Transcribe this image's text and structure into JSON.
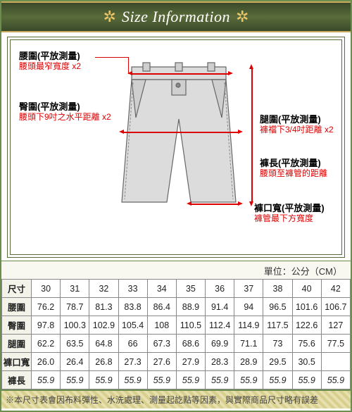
{
  "header": {
    "title": "Size Information"
  },
  "labels": {
    "waist_t": "腰圍(平放測量)",
    "waist_s": "腰頭最窄寬度 x2",
    "hip_t": "臀圍(平放測量)",
    "hip_s": "腰頭下9吋之水平距離 x2",
    "thigh_t": "腿圍(平放測量)",
    "thigh_s": "褲襠下3/4吋距離 x2",
    "length_t": "褲長(平放測量)",
    "length_s": "腰頭至褲管的距離",
    "hem_t": "褲口寬(平放測量)",
    "hem_s": "褲管最下方寬度"
  },
  "unit": "單位：公分（CM）",
  "table": {
    "row_headers": [
      "尺寸",
      "腰圍",
      "臀圍",
      "腿圍",
      "褲口寬",
      "褲長"
    ],
    "columns": [
      "30",
      "31",
      "32",
      "33",
      "34",
      "35",
      "36",
      "37",
      "38",
      "40",
      "42"
    ],
    "rows": [
      [
        "76.2",
        "78.7",
        "81.3",
        "83.8",
        "86.4",
        "88.9",
        "91.4",
        "94",
        "96.5",
        "101.6",
        "106.7"
      ],
      [
        "97.8",
        "100.3",
        "102.9",
        "105.4",
        "108",
        "110.5",
        "112.4",
        "114.9",
        "117.5",
        "122.6",
        "127"
      ],
      [
        "62.2",
        "63.5",
        "64.8",
        "66",
        "67.3",
        "68.6",
        "69.9",
        "71.1",
        "73",
        "75.6",
        "77.5"
      ],
      [
        "26.0",
        "26.4",
        "26.8",
        "27.3",
        "27.6",
        "27.9",
        "28.3",
        "28.9",
        "29.5",
        "30.5",
        ""
      ],
      [
        "55.9",
        "55.9",
        "55.9",
        "55.9",
        "55.9",
        "55.9",
        "55.9",
        "55.9",
        "55.9",
        "55.9",
        "55.9"
      ]
    ],
    "italic_row_index": 4
  },
  "footnote": "※本尺寸表會因布料彈性、水洗處理、測量起訖點等因素，與實際商品尺寸略有誤差",
  "colors": {
    "frame": "#6b8e4e",
    "band_grad_top": "#3a4a2a",
    "band_grad_mid": "#5a6b3a",
    "accent_gold": "#e8c56a",
    "red": "#d00",
    "shorts_fill": "#dcdcdc",
    "shorts_stroke": "#666"
  }
}
